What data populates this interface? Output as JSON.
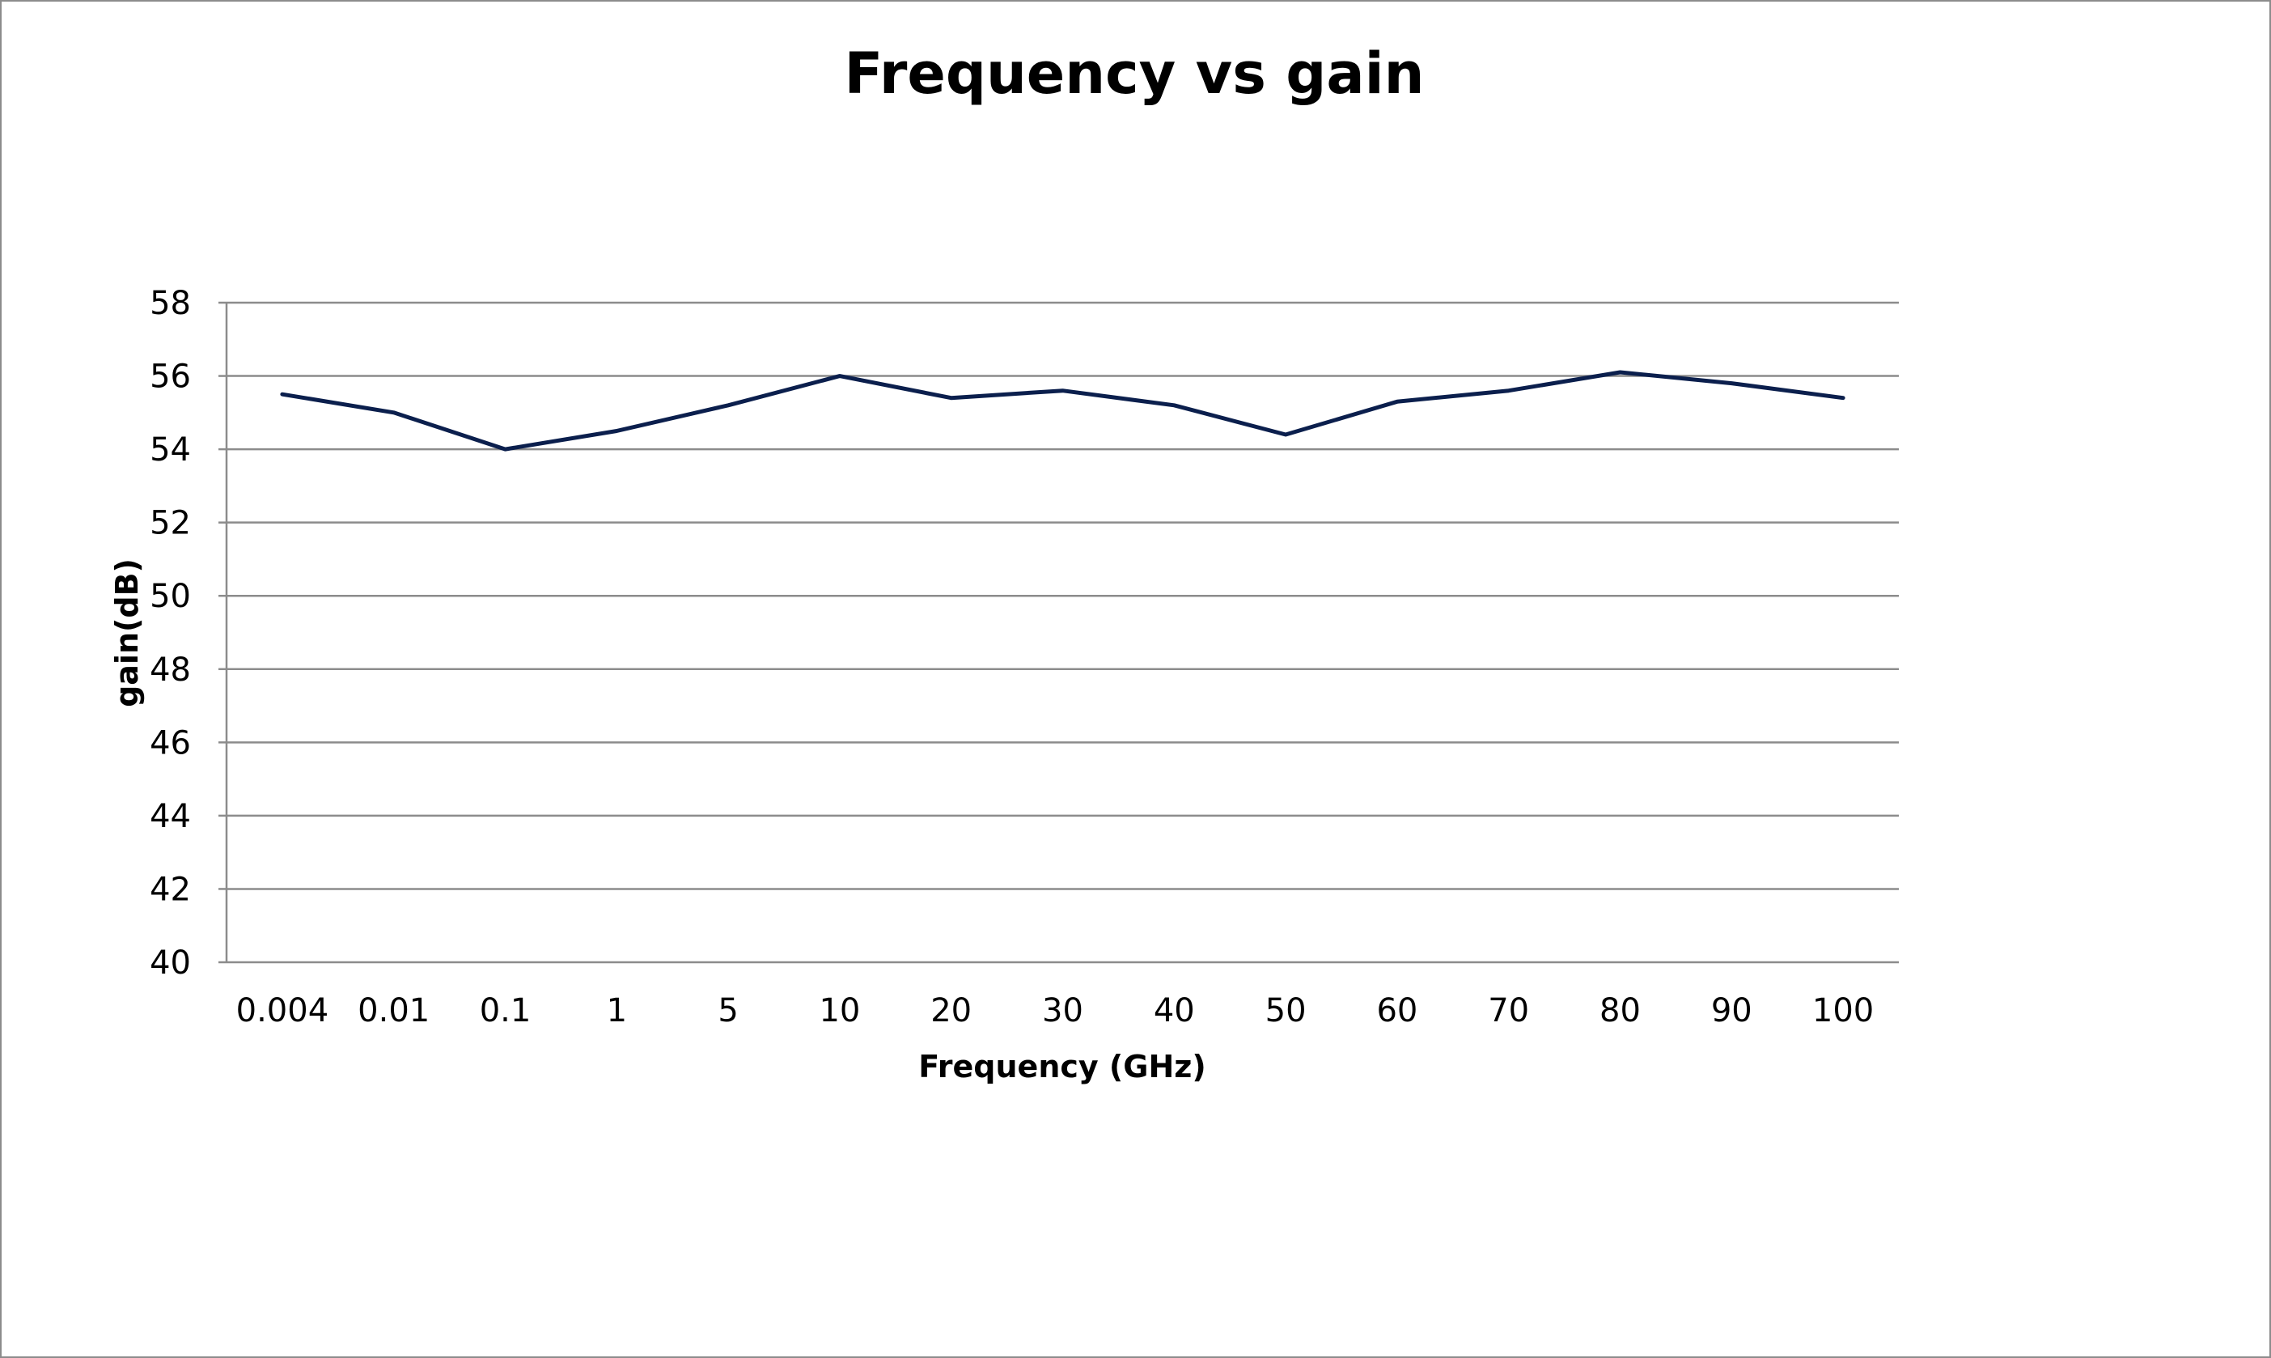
{
  "chart_data": {
    "type": "line",
    "title": "Frequency vs gain",
    "xlabel": "Frequency (GHz)",
    "ylabel": "gain(dB)",
    "categories": [
      "0.004",
      "0.01",
      "0.1",
      "1",
      "5",
      "10",
      "20",
      "30",
      "40",
      "50",
      "60",
      "70",
      "80",
      "90",
      "100"
    ],
    "series": [
      {
        "values": [
          55.5,
          55.0,
          54.0,
          54.5,
          55.2,
          56.0,
          55.4,
          55.6,
          55.2,
          54.4,
          55.3,
          55.6,
          56.1,
          55.8,
          55.4
        ],
        "color": "#0b1f4d"
      }
    ],
    "ylim": [
      40,
      58
    ],
    "yticks": [
      40,
      42,
      44,
      46,
      48,
      50,
      52,
      54,
      56,
      58
    ],
    "grid": true,
    "legend": "none"
  }
}
